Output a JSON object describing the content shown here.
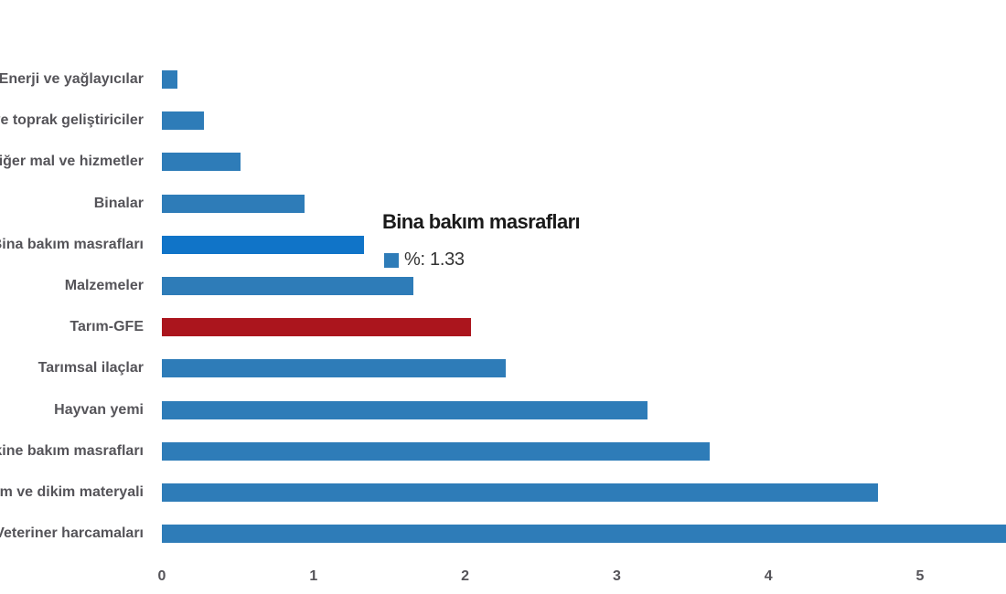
{
  "chart_data": {
    "type": "bar",
    "orientation": "horizontal",
    "title": "",
    "xlabel": "",
    "ylabel": "",
    "series_name": "%",
    "x_ticks": [
      "0",
      "1",
      "2",
      "3",
      "4",
      "5"
    ],
    "xlim": [
      0,
      5.57
    ],
    "grid": false,
    "legend": "none",
    "note": "last bar clipped at right edge of image; category labels clipped at left edge",
    "categories": [
      "Enerji ve yağlayıcılar",
      "Gübre ve toprak geliştiriciler",
      "Diğer mal ve hizmetler",
      "Binalar",
      "Bina bakım masrafları",
      "Malzemeler",
      "Tarım-GFE",
      "Tarımsal ilaçlar",
      "Hayvan yemi",
      "Makine bakım masrafları",
      "Tohum ve dikim materyali",
      "Veteriner harcamaları"
    ],
    "values": [
      0.1,
      0.28,
      0.52,
      0.94,
      1.33,
      1.66,
      2.04,
      2.27,
      3.2,
      3.61,
      4.72,
      5.6
    ],
    "point_colors": [
      "#2E7CB8",
      "#2E7CB8",
      "#2E7CB8",
      "#2E7CB8",
      "#1074C8",
      "#2E7CB8",
      "#AB151D",
      "#2E7CB8",
      "#2E7CB8",
      "#2E7CB8",
      "#2E7CB8",
      "#2E7CB8"
    ],
    "highlighted_category": "Bina bakım masrafları"
  },
  "tooltip": {
    "title": "Bina bakım masrafları",
    "series_label": "%",
    "value": "1.33",
    "text": "%: 1.33",
    "marker_color": "#2E7CB8"
  },
  "colors": {
    "bar_default": "#2E7CB8",
    "bar_highlight": "#1074C8",
    "bar_red": "#AB151D",
    "axis_label": "#555459",
    "tooltip_title": "#1a1a1a",
    "tooltip_text": "#333333",
    "background": "#ffffff"
  }
}
